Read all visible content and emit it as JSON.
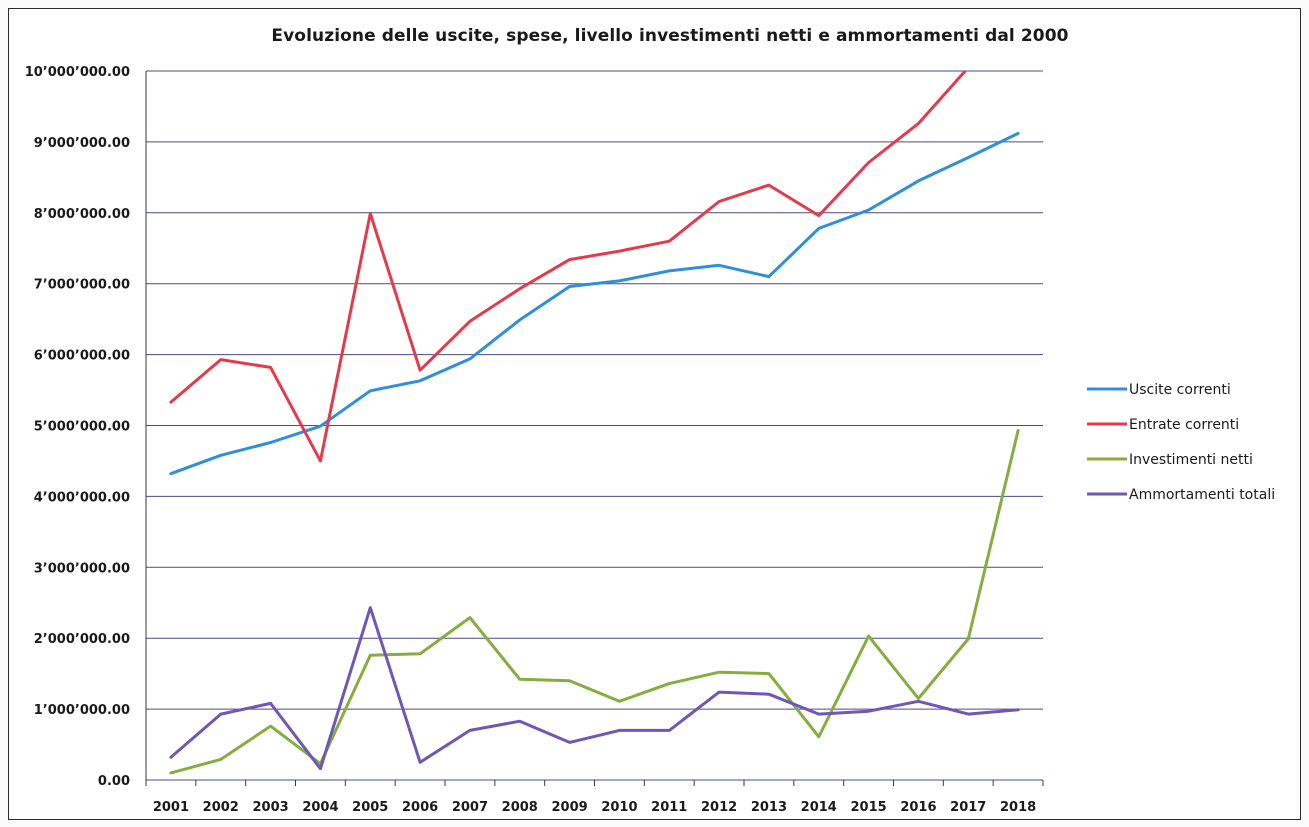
{
  "chart_data": {
    "type": "line",
    "title": "Evoluzione delle uscite, spese, livello investimenti netti e ammortamenti dal 2000",
    "xlabel": "",
    "ylabel": "",
    "categories": [
      "2001",
      "2002",
      "2003",
      "2004",
      "2005",
      "2006",
      "2007",
      "2008",
      "2009",
      "2010",
      "2011",
      "2012",
      "2013",
      "2014",
      "2015",
      "2016",
      "2017",
      "2018"
    ],
    "ylim": [
      0,
      10000000
    ],
    "y_ticks": [
      {
        "value": 0,
        "label": "0.00"
      },
      {
        "value": 1000000,
        "label": "1’000’000.00"
      },
      {
        "value": 2000000,
        "label": "2’000’000.00"
      },
      {
        "value": 3000000,
        "label": "3’000’000.00"
      },
      {
        "value": 4000000,
        "label": "4’000’000.00"
      },
      {
        "value": 5000000,
        "label": "5’000’000.00"
      },
      {
        "value": 6000000,
        "label": "6’000’000.00"
      },
      {
        "value": 7000000,
        "label": "7’000’000.00"
      },
      {
        "value": 8000000,
        "label": "8’000’000.00"
      },
      {
        "value": 9000000,
        "label": "9’000’000.00"
      },
      {
        "value": 10000000,
        "label": "10’000’000.00"
      }
    ],
    "grid": "horizontal",
    "legend_position": "right",
    "series": [
      {
        "name": "Uscite correnti",
        "color": "#2f8fd8",
        "values": [
          4320000,
          4580000,
          4760000,
          4990000,
          5490000,
          5630000,
          5940000,
          6490000,
          6960000,
          7040000,
          7180000,
          7260000,
          7100000,
          7780000,
          8040000,
          8450000,
          8780000,
          9120000
        ]
      },
      {
        "name": "Entrate correnti",
        "color": "#e33b4c",
        "values": [
          5330000,
          5930000,
          5820000,
          4500000,
          7990000,
          5780000,
          6470000,
          6930000,
          7340000,
          7460000,
          7600000,
          8160000,
          8390000,
          7960000,
          8710000,
          9260000,
          10050000,
          null
        ]
      },
      {
        "name": "Investimenti netti",
        "color": "#86ad3f",
        "values": [
          100000,
          290000,
          760000,
          230000,
          1760000,
          1780000,
          2290000,
          1420000,
          1400000,
          1110000,
          1360000,
          1520000,
          1500000,
          610000,
          2030000,
          1150000,
          1990000,
          4930000
        ]
      },
      {
        "name": "Ammortamenti totali",
        "color": "#6e57b5",
        "values": [
          320000,
          930000,
          1080000,
          160000,
          2430000,
          250000,
          700000,
          830000,
          530000,
          700000,
          700000,
          1240000,
          1210000,
          930000,
          970000,
          1110000,
          930000,
          990000
        ]
      }
    ]
  }
}
